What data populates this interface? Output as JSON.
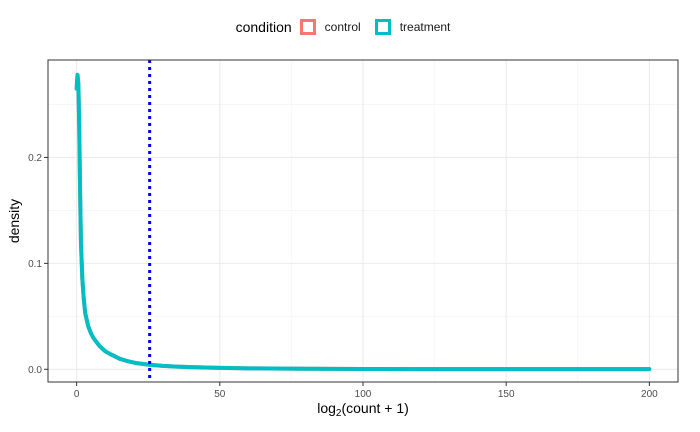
{
  "chart_data": {
    "type": "line",
    "xlabel_parts": {
      "prefix": "log",
      "subscript": "2",
      "suffix": "(count + 1)"
    },
    "ylabel": "density",
    "legend": {
      "title": "condition",
      "position": "top",
      "entries": [
        {
          "name": "control",
          "color": "#F8766D"
        },
        {
          "name": "treatment",
          "color": "#00BFC4"
        }
      ]
    },
    "xlim": [
      -10,
      210
    ],
    "ylim": [
      -0.012,
      0.292
    ],
    "x_ticks": [
      0,
      50,
      100,
      150,
      200
    ],
    "x_tick_labels": [
      "0",
      "50",
      "100",
      "150",
      "200"
    ],
    "y_ticks": [
      0.0,
      0.1,
      0.2
    ],
    "y_tick_labels": [
      "0.0",
      "0.1",
      "0.2"
    ],
    "grid": true,
    "vline": {
      "x": 25.5,
      "color": "#0000FF",
      "style": "dotted"
    },
    "series": [
      {
        "name": "control",
        "color": "#F8766D",
        "x": [
          0,
          0.3,
          0.6,
          0.9,
          1.2,
          1.5,
          2,
          2.5,
          3,
          4,
          5,
          6,
          8,
          10,
          12,
          15,
          18,
          21,
          25,
          30,
          35,
          40,
          50,
          60,
          80,
          100,
          120,
          140,
          160,
          180,
          200
        ],
        "y": [
          0.265,
          0.278,
          0.27,
          0.23,
          0.17,
          0.12,
          0.085,
          0.066,
          0.053,
          0.041,
          0.034,
          0.029,
          0.022,
          0.017,
          0.014,
          0.01,
          0.0075,
          0.0058,
          0.0044,
          0.0032,
          0.0025,
          0.002,
          0.0013,
          0.0009,
          0.0005,
          0.0003,
          0.0002,
          0.00015,
          0.0001,
          0.0001,
          0.0001
        ]
      },
      {
        "name": "treatment",
        "color": "#00BFC4",
        "x": [
          0,
          0.3,
          0.6,
          0.9,
          1.2,
          1.5,
          2,
          2.5,
          3,
          4,
          5,
          6,
          8,
          10,
          12,
          15,
          18,
          21,
          25,
          30,
          35,
          40,
          50,
          60,
          80,
          100,
          120,
          140,
          160,
          180,
          200
        ],
        "y": [
          0.265,
          0.278,
          0.27,
          0.23,
          0.17,
          0.12,
          0.085,
          0.066,
          0.053,
          0.041,
          0.034,
          0.029,
          0.022,
          0.017,
          0.014,
          0.01,
          0.0075,
          0.0058,
          0.0044,
          0.0032,
          0.0025,
          0.002,
          0.0013,
          0.0009,
          0.0005,
          0.0003,
          0.0002,
          0.00015,
          0.0001,
          0.0001,
          0.0001
        ]
      }
    ]
  }
}
